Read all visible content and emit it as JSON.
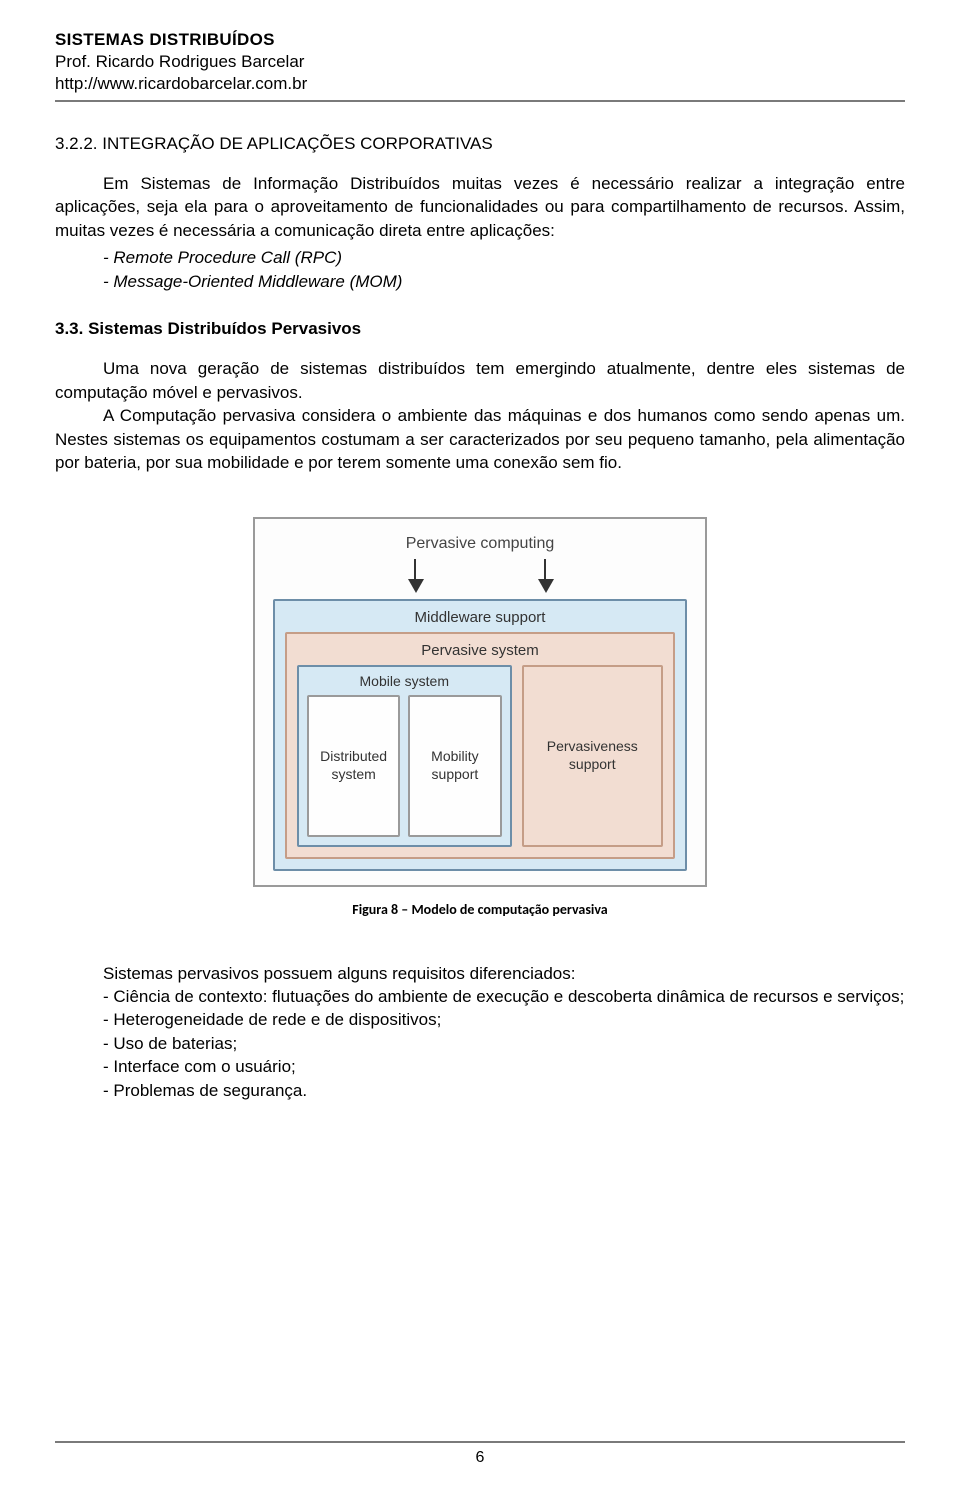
{
  "header": {
    "course_title": "SISTEMAS DISTRIBUÍDOS",
    "prof_line": "Prof. Ricardo Rodrigues Barcelar",
    "url_line": "http://www.ricardobarcelar.com.br"
  },
  "section_number": "3.2.2. INTEGRAÇÃO DE APLICAÇÕES CORPORATIVAS",
  "para1": "Em Sistemas de Informação Distribuídos muitas vezes é necessário realizar a integração entre aplicações, seja ela para o aproveitamento de funcionalidades ou para compartilhamento de recursos. Assim, muitas vezes é necessária a comunicação direta entre aplicações:",
  "bullets1": [
    "- Remote Procedure Call (RPC)",
    "- Message-Oriented Middleware (MOM)"
  ],
  "section_title2": "3.3. Sistemas Distribuídos Pervasivos",
  "para2": "Uma nova geração de sistemas distribuídos tem emergindo atualmente, dentre eles sistemas de computação móvel e pervasivos.",
  "para3": "A Computação pervasiva considera o ambiente das máquinas e dos humanos como sendo apenas um. Nestes sistemas os equipamentos costumam a ser caracterizados por seu pequeno tamanho, pela alimentação por bateria, por sua mobilidade e por terem somente uma conexão sem fio.",
  "figure": {
    "top_label": "Pervasive computing",
    "mw_label": "Middleware support",
    "pv_label": "Pervasive system",
    "mobile_label": "Mobile system",
    "dist_label": "Distributed system",
    "mobility_label": "Mobility support",
    "pvness_label": "Pervasiveness support",
    "caption": "Figura 8 – Modelo de computação pervasiva",
    "colors": {
      "outer_border": "#9a9a9a",
      "blue_fill": "#d6e9f4",
      "blue_border": "#6d8ea8",
      "peach_fill": "#f2ddd2",
      "peach_border": "#c59d87",
      "white_fill": "#fefefe"
    }
  },
  "req": {
    "lead": "Sistemas pervasivos possuem alguns requisitos diferenciados:",
    "items": [
      "- Ciência de contexto: flutuações do ambiente de execução e descoberta dinâmica de recursos e serviços;",
      "- Heterogeneidade de rede e de dispositivos;",
      "- Uso de baterias;",
      "- Interface com o usuário;",
      "- Problemas de segurança."
    ]
  },
  "page_number": "6"
}
